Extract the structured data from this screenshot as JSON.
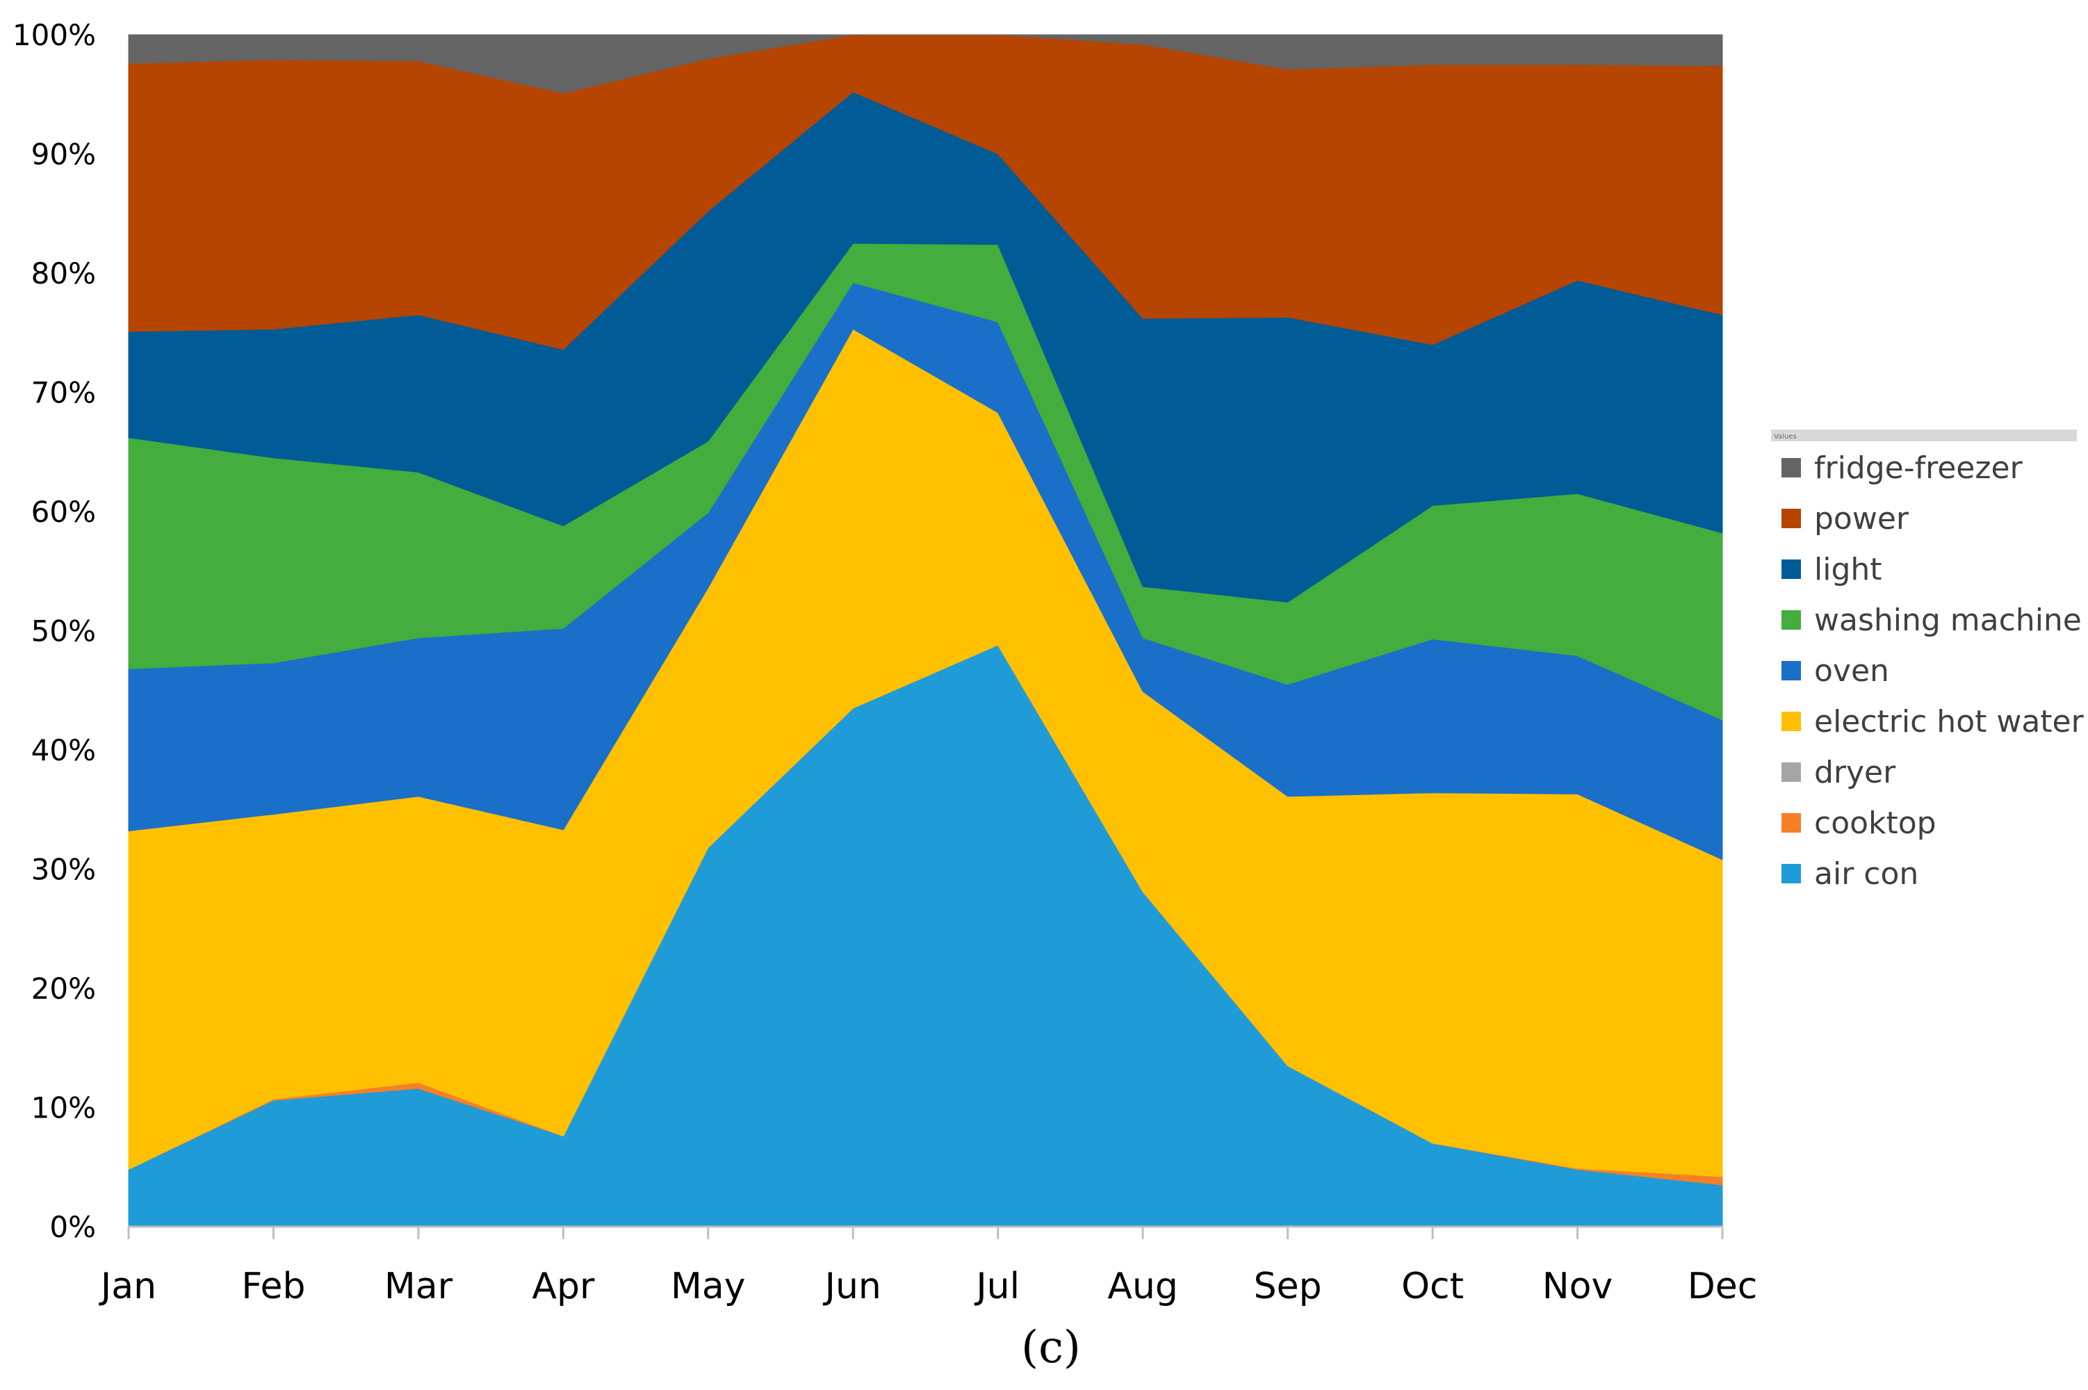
{
  "chart_data": {
    "type": "area",
    "stacked": true,
    "percent": true,
    "categories": [
      "Jan",
      "Feb",
      "Mar",
      "Apr",
      "May",
      "Jun",
      "Jul",
      "Aug",
      "Sep",
      "Oct",
      "Nov",
      "Dec"
    ],
    "y_ticks": [
      "0%",
      "10%",
      "20%",
      "30%",
      "40%",
      "50%",
      "60%",
      "70%",
      "80%",
      "90%",
      "100%"
    ],
    "ylim": [
      0,
      100
    ],
    "legend_position": "right",
    "legend_header": "Values",
    "caption": "(c)",
    "series": [
      {
        "name": "air con",
        "color": "#1f9bd7",
        "values": [
          4.8,
          10.6,
          11.6,
          7.6,
          31.8,
          43.5,
          48.8,
          28.1,
          13.5,
          7.0,
          4.8,
          3.5
        ]
      },
      {
        "name": "cooktop",
        "color": "#f58025",
        "values": [
          0.0,
          0.1,
          0.5,
          0.0,
          0.0,
          0.0,
          0.0,
          0.0,
          0.0,
          0.0,
          0.1,
          0.7
        ]
      },
      {
        "name": "dryer",
        "color": "#a5a5a5",
        "values": [
          0.0,
          0.0,
          0.0,
          0.0,
          0.0,
          0.0,
          0.0,
          0.0,
          0.0,
          0.0,
          0.0,
          0.0
        ]
      },
      {
        "name": "electric hot water",
        "color": "#ffc000",
        "values": [
          28.4,
          23.9,
          24.0,
          25.7,
          21.8,
          31.8,
          19.5,
          16.8,
          22.6,
          29.4,
          31.4,
          26.6
        ]
      },
      {
        "name": "oven",
        "color": "#1a6fc9",
        "values": [
          13.6,
          12.7,
          13.3,
          16.9,
          6.3,
          3.9,
          7.6,
          4.5,
          9.4,
          12.9,
          11.6,
          11.7
        ]
      },
      {
        "name": "washing machine",
        "color": "#43ad3d",
        "values": [
          19.4,
          17.2,
          13.9,
          8.6,
          6.0,
          3.3,
          6.5,
          4.3,
          6.9,
          11.2,
          13.6,
          15.7
        ]
      },
      {
        "name": "light",
        "color": "#005b96",
        "values": [
          8.9,
          10.8,
          13.2,
          14.8,
          19.3,
          12.7,
          7.6,
          22.5,
          23.9,
          13.5,
          17.9,
          18.3
        ]
      },
      {
        "name": "power",
        "color": "#b54500",
        "values": [
          22.5,
          22.6,
          21.3,
          21.5,
          12.8,
          4.8,
          10.0,
          23.0,
          20.8,
          23.5,
          18.1,
          20.9
        ]
      },
      {
        "name": "fridge-freezer",
        "color": "#646464",
        "values": [
          2.4,
          2.1,
          2.2,
          4.9,
          2.0,
          0.0,
          0.0,
          0.8,
          2.9,
          2.5,
          2.5,
          2.6
        ]
      }
    ]
  }
}
